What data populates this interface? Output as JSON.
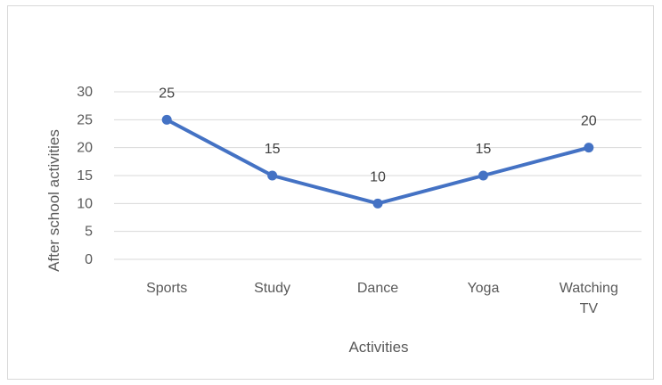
{
  "chart_data": {
    "type": "line",
    "categories": [
      "Sports",
      "Study",
      "Dance",
      "Yoga",
      "Watching TV"
    ],
    "category_lines": [
      [
        "Sports"
      ],
      [
        "Study"
      ],
      [
        "Dance"
      ],
      [
        "Yoga"
      ],
      [
        "Watching",
        "TV"
      ]
    ],
    "series": [
      {
        "values": [
          25,
          15,
          10,
          15,
          20
        ]
      }
    ],
    "data_labels": [
      "25",
      "15",
      "10",
      "15",
      "20"
    ],
    "xlabel": "Activities",
    "ylabel": "After school activities",
    "ylim": [
      0,
      30
    ],
    "yticks": [
      "0",
      "5",
      "10",
      "15",
      "20",
      "25",
      "30"
    ],
    "grid": true,
    "legend": false,
    "colors": {
      "line": "#4472c4",
      "grid": "#d9d9d9",
      "text": "#595959"
    }
  }
}
